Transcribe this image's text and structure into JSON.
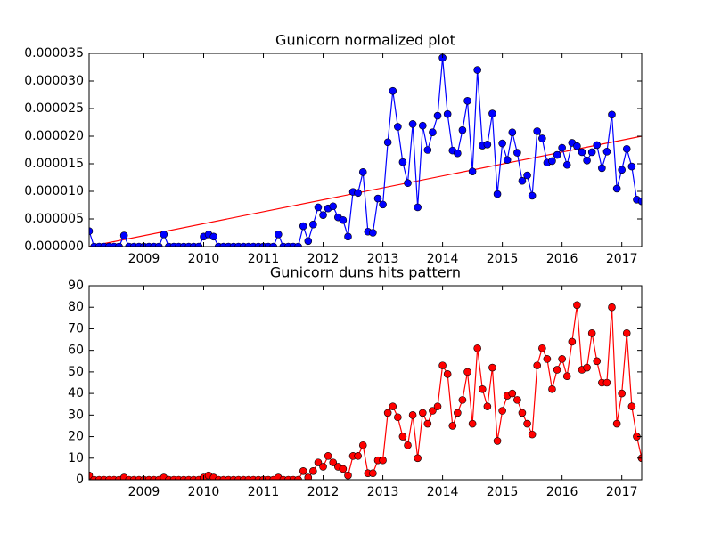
{
  "chart_data": [
    {
      "type": "line",
      "title": "Gunicorn normalized plot",
      "color": "#0000ff",
      "x": [
        2008.083,
        2008.167,
        2008.25,
        2008.333,
        2008.417,
        2008.5,
        2008.583,
        2008.667,
        2008.75,
        2008.833,
        2008.917,
        2009.0,
        2009.083,
        2009.167,
        2009.25,
        2009.333,
        2009.417,
        2009.5,
        2009.583,
        2009.667,
        2009.75,
        2009.833,
        2009.917,
        2010.0,
        2010.083,
        2010.167,
        2010.25,
        2010.333,
        2010.417,
        2010.5,
        2010.583,
        2010.667,
        2010.75,
        2010.833,
        2010.917,
        2011.0,
        2011.083,
        2011.167,
        2011.25,
        2011.333,
        2011.417,
        2011.5,
        2011.583,
        2011.667,
        2011.75,
        2011.833,
        2011.917,
        2012.0,
        2012.083,
        2012.167,
        2012.25,
        2012.333,
        2012.417,
        2012.5,
        2012.583,
        2012.667,
        2012.75,
        2012.833,
        2012.917,
        2013.0,
        2013.083,
        2013.167,
        2013.25,
        2013.333,
        2013.417,
        2013.5,
        2013.583,
        2013.667,
        2013.75,
        2013.833,
        2013.917,
        2014.0,
        2014.083,
        2014.167,
        2014.25,
        2014.333,
        2014.417,
        2014.5,
        2014.583,
        2014.667,
        2014.75,
        2014.833,
        2014.917,
        2015.0,
        2015.083,
        2015.167,
        2015.25,
        2015.333,
        2015.417,
        2015.5,
        2015.583,
        2015.667,
        2015.75,
        2015.833,
        2015.917,
        2016.0,
        2016.083,
        2016.167,
        2016.25,
        2016.333,
        2016.417,
        2016.5,
        2016.583,
        2016.667,
        2016.75,
        2016.833,
        2016.917,
        2017.0,
        2017.083,
        2017.167,
        2017.25,
        2017.333
      ],
      "values": [
        2.8e-06,
        0,
        0,
        0,
        0,
        0,
        0,
        2e-06,
        0,
        0,
        0,
        0,
        0,
        0,
        0,
        2.2e-06,
        0,
        0,
        0,
        0,
        0,
        0,
        0,
        1.8e-06,
        2.2e-06,
        1.8e-06,
        0,
        0,
        0,
        0,
        0,
        0,
        0,
        0,
        0,
        0,
        0,
        0,
        2.2e-06,
        0,
        0,
        0,
        0,
        3.7e-06,
        1e-06,
        4e-06,
        7.1e-06,
        5.7e-06,
        6.9e-06,
        7.3e-06,
        5.3e-06,
        4.8e-06,
        1.8e-06,
        9.9e-06,
        9.7e-06,
        1.35e-05,
        2.7e-06,
        2.5e-06,
        8.7e-06,
        7.6e-06,
        1.89e-05,
        2.82e-05,
        2.17e-05,
        1.53e-05,
        1.15e-05,
        2.22e-05,
        7.1e-06,
        2.19e-05,
        1.75e-05,
        2.07e-05,
        2.37e-05,
        3.42e-05,
        2.4e-05,
        1.74e-05,
        1.69e-05,
        2.11e-05,
        2.64e-05,
        1.36e-05,
        3.2e-05,
        1.83e-05,
        1.85e-05,
        2.41e-05,
        9.5e-06,
        1.87e-05,
        1.57e-05,
        2.07e-05,
        1.7e-05,
        1.19e-05,
        1.29e-05,
        9.2e-06,
        2.09e-05,
        1.96e-05,
        1.52e-05,
        1.55e-05,
        1.66e-05,
        1.79e-05,
        1.48e-05,
        1.88e-05,
        1.82e-05,
        1.71e-05,
        1.56e-05,
        1.71e-05,
        1.84e-05,
        1.42e-05,
        1.72e-05,
        2.39e-05,
        1.05e-05,
        1.39e-05,
        1.77e-05,
        1.45e-05,
        8.5e-06,
        8.2e-06
      ],
      "trend_line": {
        "color": "#ff0000",
        "x": [
          2008.083,
          2017.333
        ],
        "values": [
          0,
          2e-05
        ]
      },
      "xlim": [
        2008.083,
        2017.333
      ],
      "xticks": [
        2009,
        2010,
        2011,
        2012,
        2013,
        2014,
        2015,
        2016,
        2017
      ],
      "ylim": [
        0,
        3.5e-05
      ],
      "yticks": [
        {
          "value": 0,
          "label": "0.000000"
        },
        {
          "value": 5e-06,
          "label": "0.000005"
        },
        {
          "value": 1e-05,
          "label": "0.000010"
        },
        {
          "value": 1.5e-05,
          "label": "0.000015"
        },
        {
          "value": 2e-05,
          "label": "0.000020"
        },
        {
          "value": 2.5e-05,
          "label": "0.000025"
        },
        {
          "value": 3e-05,
          "label": "0.000030"
        },
        {
          "value": 3.5e-05,
          "label": "0.000035"
        }
      ]
    },
    {
      "type": "line",
      "title": "Gunicorn duns hits pattern",
      "color": "#ff0000",
      "x": [
        2008.083,
        2008.167,
        2008.25,
        2008.333,
        2008.417,
        2008.5,
        2008.583,
        2008.667,
        2008.75,
        2008.833,
        2008.917,
        2009.0,
        2009.083,
        2009.167,
        2009.25,
        2009.333,
        2009.417,
        2009.5,
        2009.583,
        2009.667,
        2009.75,
        2009.833,
        2009.917,
        2010.0,
        2010.083,
        2010.167,
        2010.25,
        2010.333,
        2010.417,
        2010.5,
        2010.583,
        2010.667,
        2010.75,
        2010.833,
        2010.917,
        2011.0,
        2011.083,
        2011.167,
        2011.25,
        2011.333,
        2011.417,
        2011.5,
        2011.583,
        2011.667,
        2011.75,
        2011.833,
        2011.917,
        2012.0,
        2012.083,
        2012.167,
        2012.25,
        2012.333,
        2012.417,
        2012.5,
        2012.583,
        2012.667,
        2012.75,
        2012.833,
        2012.917,
        2013.0,
        2013.083,
        2013.167,
        2013.25,
        2013.333,
        2013.417,
        2013.5,
        2013.583,
        2013.667,
        2013.75,
        2013.833,
        2013.917,
        2014.0,
        2014.083,
        2014.167,
        2014.25,
        2014.333,
        2014.417,
        2014.5,
        2014.583,
        2014.667,
        2014.75,
        2014.833,
        2014.917,
        2015.0,
        2015.083,
        2015.167,
        2015.25,
        2015.333,
        2015.417,
        2015.5,
        2015.583,
        2015.667,
        2015.75,
        2015.833,
        2015.917,
        2016.0,
        2016.083,
        2016.167,
        2016.25,
        2016.333,
        2016.417,
        2016.5,
        2016.583,
        2016.667,
        2016.75,
        2016.833,
        2016.917,
        2017.0,
        2017.083,
        2017.167,
        2017.25,
        2017.333
      ],
      "values": [
        2,
        0,
        0,
        0,
        0,
        0,
        0,
        1,
        0,
        0,
        0,
        0,
        0,
        0,
        0,
        1,
        0,
        0,
        0,
        0,
        0,
        0,
        0,
        1,
        2,
        1,
        0,
        0,
        0,
        0,
        0,
        0,
        0,
        0,
        0,
        0,
        0,
        0,
        1,
        0,
        0,
        0,
        0,
        4,
        1,
        4,
        8,
        6,
        11,
        8,
        6,
        5,
        2,
        11,
        11,
        16,
        3,
        3,
        9,
        9,
        31,
        34,
        29,
        20,
        16,
        30,
        10,
        31,
        26,
        32,
        34,
        53,
        49,
        25,
        31,
        37,
        50,
        26,
        61,
        42,
        34,
        52,
        18,
        32,
        39,
        40,
        37,
        31,
        26,
        21,
        53,
        61,
        56,
        42,
        51,
        56,
        48,
        64,
        81,
        51,
        52,
        68,
        55,
        45,
        45,
        80,
        26,
        40,
        68,
        34,
        20,
        10
      ],
      "xlim": [
        2008.083,
        2017.333
      ],
      "xticks": [
        2009,
        2010,
        2011,
        2012,
        2013,
        2014,
        2015,
        2016,
        2017
      ],
      "ylim": [
        0,
        90
      ],
      "yticks": [
        0,
        10,
        20,
        30,
        40,
        50,
        60,
        70,
        80,
        90
      ]
    }
  ]
}
